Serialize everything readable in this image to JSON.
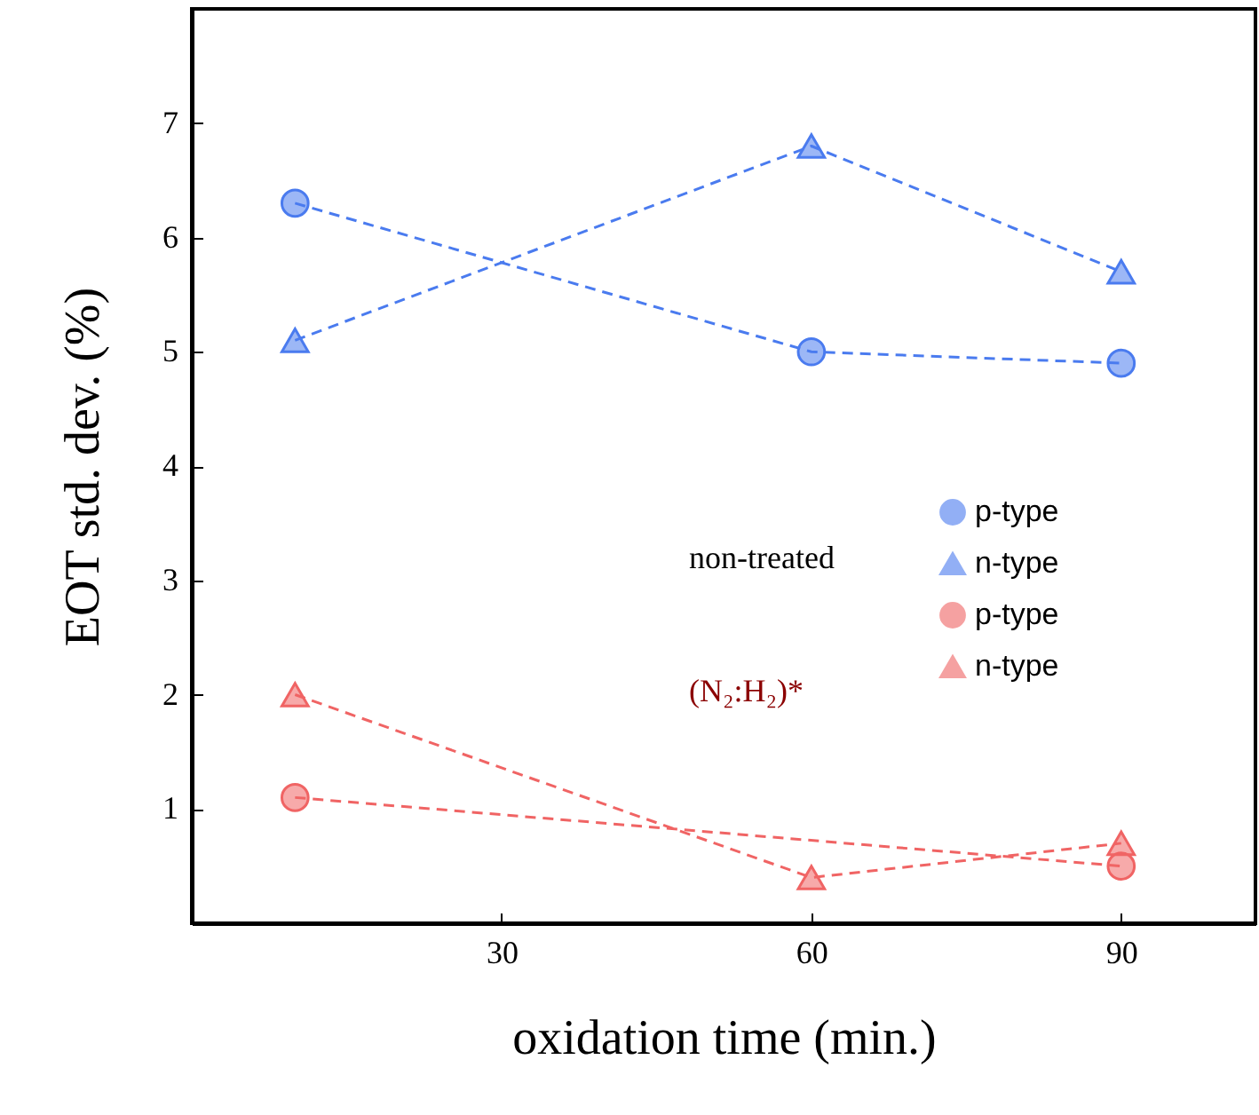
{
  "chart_data": {
    "type": "line",
    "xlabel": "oxidation time  (min.)",
    "ylabel": "EOT std. dev.  (%)",
    "xlim": [
      0,
      103
    ],
    "xticks": [
      30,
      60,
      90
    ],
    "ylim": [
      0,
      8
    ],
    "yticks": [
      1,
      2,
      3,
      4,
      5,
      6,
      7
    ],
    "grid": false,
    "legend": "right",
    "line_style": "dashed",
    "annotations": [
      "non-treated",
      "(N₂:H₂)*"
    ],
    "series": [
      {
        "name": "p-type",
        "color": "#4a7bef",
        "marker": "circle",
        "x": [
          10,
          60,
          90
        ],
        "values": [
          6.3,
          5.0,
          4.9
        ]
      },
      {
        "name": "n-type",
        "color": "#4a7bef",
        "marker": "triangle",
        "x": [
          10,
          60,
          90
        ],
        "values": [
          5.1,
          6.8,
          5.7
        ]
      },
      {
        "name": "p-type",
        "color": "#f06464",
        "marker": "circle",
        "x": [
          10,
          90
        ],
        "values": [
          1.1,
          0.5
        ]
      },
      {
        "name": "n-type",
        "color": "#f06464",
        "marker": "triangle",
        "x": [
          10,
          60,
          90
        ],
        "values": [
          2.0,
          0.4,
          0.7
        ]
      }
    ]
  }
}
